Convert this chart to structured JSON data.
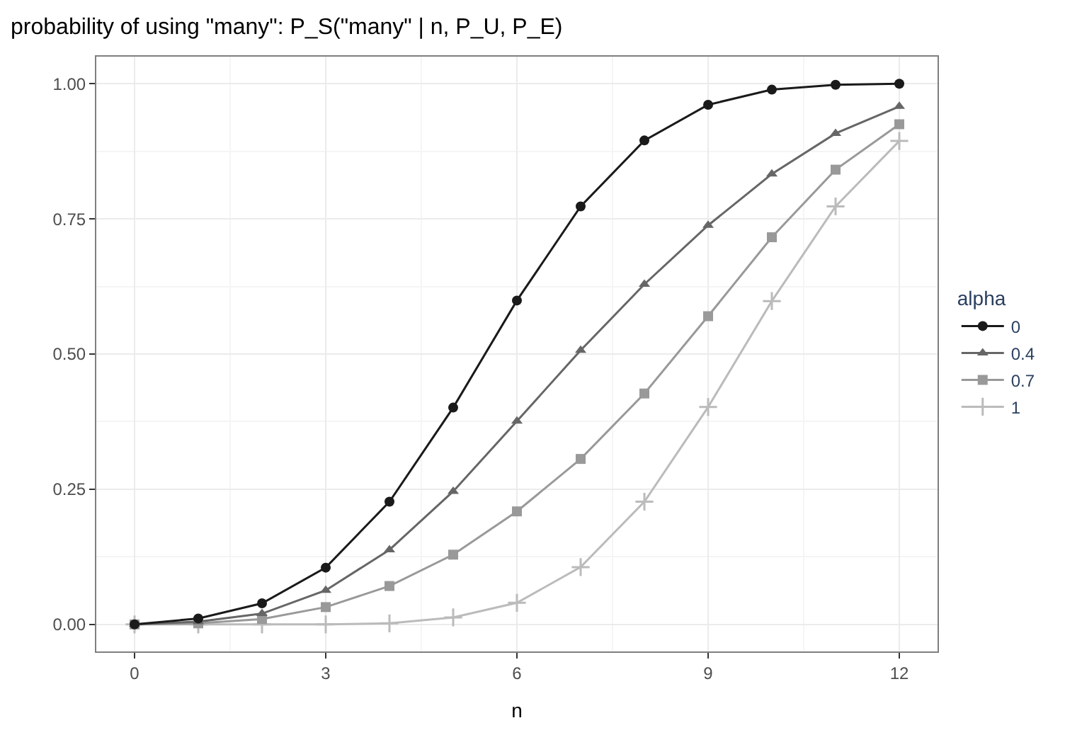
{
  "chart_data": {
    "type": "line",
    "title": "probability of using \"many\": P_S(\"many\" | n, P_U, P_E)",
    "xlabel": "n",
    "legend_title": "alpha",
    "x": [
      0,
      1,
      2,
      3,
      4,
      5,
      6,
      7,
      8,
      9,
      10,
      11,
      12
    ],
    "series": [
      {
        "name": "0",
        "color": "#1a1a1a",
        "marker": "circle",
        "values": [
          0.0,
          0.011,
          0.039,
          0.105,
          0.227,
          0.401,
          0.599,
          0.773,
          0.895,
          0.961,
          0.989,
          0.998,
          1.0
        ]
      },
      {
        "name": "0.4",
        "color": "#666666",
        "marker": "triangle",
        "values": [
          0.0,
          0.005,
          0.02,
          0.063,
          0.138,
          0.246,
          0.376,
          0.507,
          0.629,
          0.738,
          0.833,
          0.908,
          0.958
        ]
      },
      {
        "name": "0.7",
        "color": "#999999",
        "marker": "square",
        "values": [
          0.0,
          0.002,
          0.01,
          0.032,
          0.071,
          0.129,
          0.209,
          0.306,
          0.427,
          0.57,
          0.716,
          0.841,
          0.925
        ]
      },
      {
        "name": "1",
        "color": "#bbbbbb",
        "marker": "cross",
        "values": [
          0.0,
          0.0,
          0.0,
          0.0,
          0.002,
          0.013,
          0.04,
          0.106,
          0.227,
          0.402,
          0.598,
          0.773,
          0.894
        ]
      }
    ],
    "xlim": [
      -0.6,
      12.6
    ],
    "ylim": [
      -0.05,
      1.05
    ],
    "xticks": [
      0,
      3,
      6,
      9,
      12
    ],
    "yticks": [
      {
        "value": 0,
        "label": "0.00"
      },
      {
        "value": 0.25,
        "label": "0.25"
      },
      {
        "value": 0.5,
        "label": "0.50"
      },
      {
        "value": 0.75,
        "label": "0.75"
      },
      {
        "value": 1,
        "label": "1.00"
      }
    ],
    "grid": true,
    "legend": "right",
    "line_style": "solid"
  }
}
